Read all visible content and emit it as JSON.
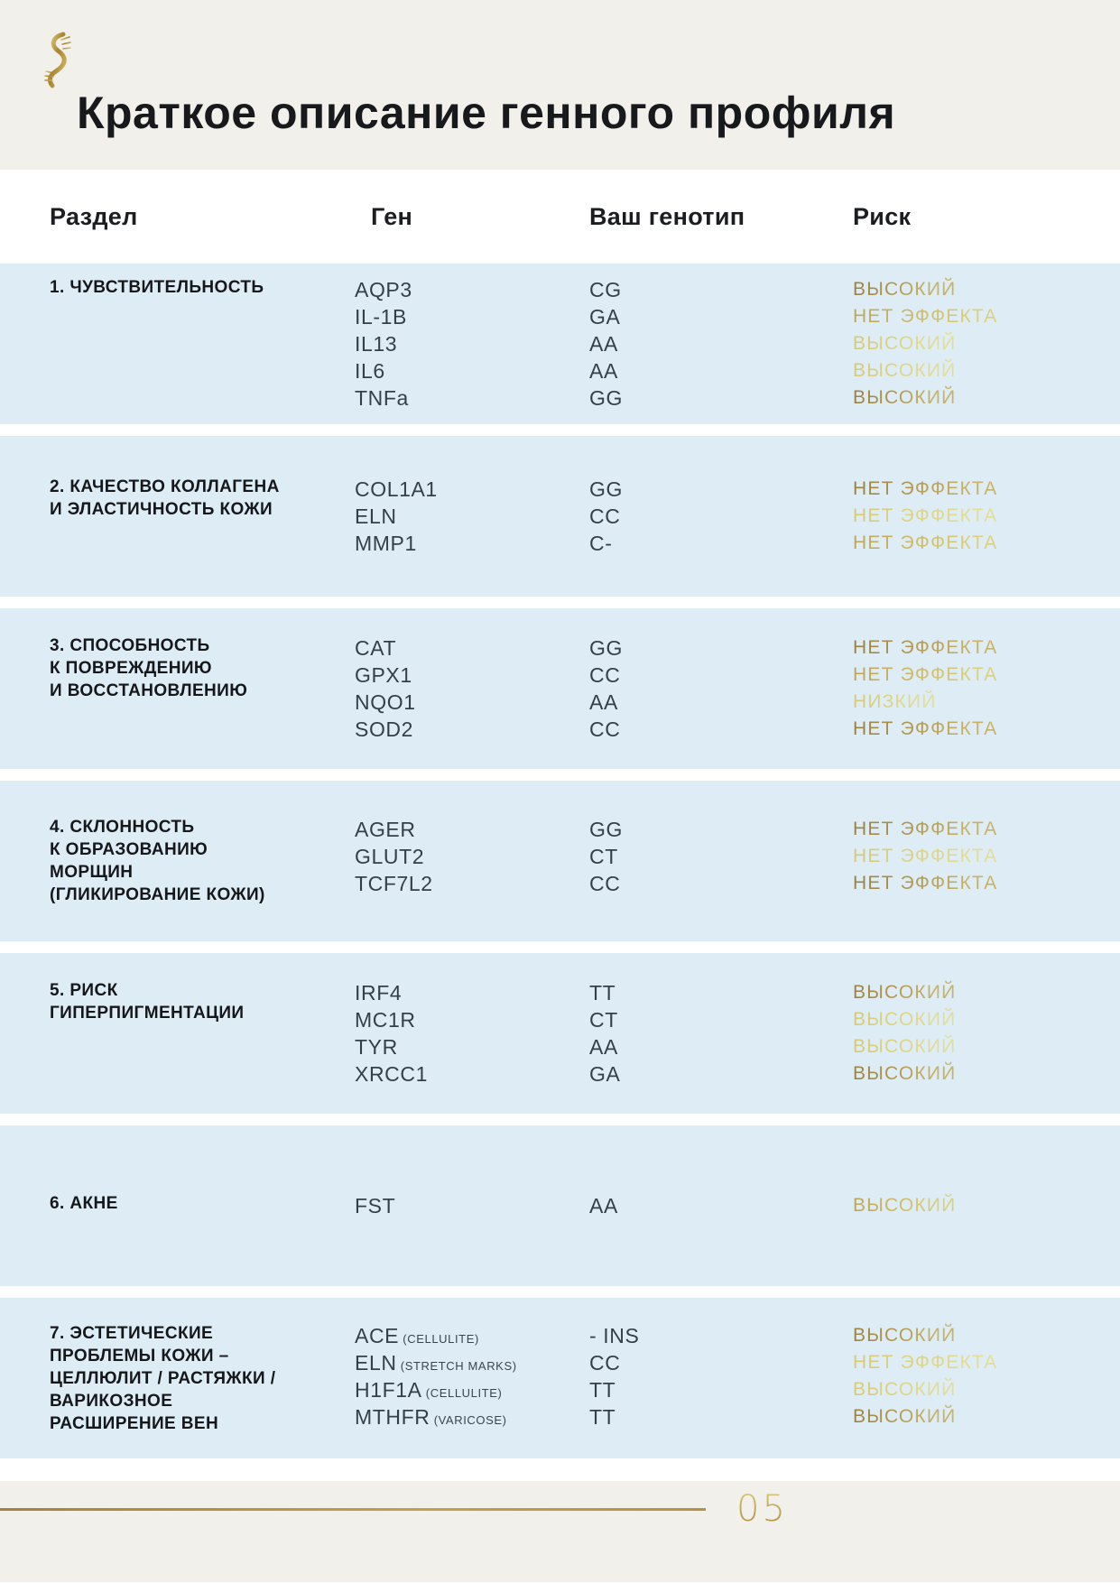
{
  "page": {
    "title": "Краткое описание генного профиля",
    "page_number": "05"
  },
  "logo": {
    "icon": "dna-helix-icon"
  },
  "table": {
    "headers": [
      "Раздел",
      "Ген",
      "Ваш генотип",
      "Риск"
    ],
    "sections": [
      {
        "title_lines": [
          "1. ЧУВСТВИТЕЛЬНОСТЬ"
        ],
        "rows": [
          {
            "gene": "AQP3",
            "note": "",
            "genotype": "CG",
            "risk": "ВЫСОКИЙ",
            "tone": "dark"
          },
          {
            "gene": "IL-1B",
            "note": "",
            "genotype": "GA",
            "risk": "НЕТ ЭФФЕКТА",
            "tone": "medium"
          },
          {
            "gene": "IL13",
            "note": "",
            "genotype": "AA",
            "risk": "ВЫСОКИЙ",
            "tone": "light"
          },
          {
            "gene": "IL6",
            "note": "",
            "genotype": "AA",
            "risk": "ВЫСОКИЙ",
            "tone": "light"
          },
          {
            "gene": "TNFa",
            "note": "",
            "genotype": "GG",
            "risk": "ВЫСОКИЙ",
            "tone": "dark"
          }
        ]
      },
      {
        "title_lines": [
          "2. КАЧЕСТВО КОЛЛАГЕНА",
          "И ЭЛАСТИЧНОСТЬ КОЖИ"
        ],
        "rows": [
          {
            "gene": "COL1A1",
            "note": "",
            "genotype": "GG",
            "risk": "НЕТ ЭФФЕКТА",
            "tone": "dark"
          },
          {
            "gene": "ELN",
            "note": "",
            "genotype": "CC",
            "risk": "НЕТ ЭФФЕКТА",
            "tone": "light"
          },
          {
            "gene": "MMP1",
            "note": "",
            "genotype": "C-",
            "risk": "НЕТ ЭФФЕКТА",
            "tone": "medium"
          }
        ]
      },
      {
        "title_lines": [
          "3. СПОСОБНОСТЬ",
          "К ПОВРЕЖДЕНИЮ",
          "И ВОССТАНОВЛЕНИЮ"
        ],
        "rows": [
          {
            "gene": "CAT",
            "note": "",
            "genotype": "GG",
            "risk": "НЕТ ЭФФЕКТА",
            "tone": "dark"
          },
          {
            "gene": "GPX1",
            "note": "",
            "genotype": "CC",
            "risk": "НЕТ ЭФФЕКТА",
            "tone": "medium"
          },
          {
            "gene": "NQO1",
            "note": "",
            "genotype": "AA",
            "risk": "НИЗКИЙ",
            "tone": "light"
          },
          {
            "gene": "SOD2",
            "note": "",
            "genotype": "CC",
            "risk": "НЕТ ЭФФЕКТА",
            "tone": "dark"
          }
        ]
      },
      {
        "title_lines": [
          "4. СКЛОННОСТЬ",
          "К ОБРАЗОВАНИЮ",
          "МОРЩИН",
          "(ГЛИКИРОВАНИЕ КОЖИ)"
        ],
        "rows": [
          {
            "gene": "AGER",
            "note": "",
            "genotype": "GG",
            "risk": "НЕТ ЭФФЕКТА",
            "tone": "dark"
          },
          {
            "gene": "GLUT2",
            "note": "",
            "genotype": "CT",
            "risk": "НЕТ ЭФФЕКТА",
            "tone": "light"
          },
          {
            "gene": "TCF7L2",
            "note": "",
            "genotype": "CC",
            "risk": "НЕТ ЭФФЕКТА",
            "tone": "dark"
          }
        ]
      },
      {
        "title_lines": [
          "5. РИСК",
          "ГИПЕРПИГМЕНТАЦИИ"
        ],
        "rows": [
          {
            "gene": "IRF4",
            "note": "",
            "genotype": "TT",
            "risk": "ВЫСОКИЙ",
            "tone": "dark"
          },
          {
            "gene": "MC1R",
            "note": "",
            "genotype": "CT",
            "risk": "ВЫСОКИЙ",
            "tone": "light"
          },
          {
            "gene": "TYR",
            "note": "",
            "genotype": "AA",
            "risk": "ВЫСОКИЙ",
            "tone": "light"
          },
          {
            "gene": "XRCC1",
            "note": "",
            "genotype": "GA",
            "risk": "ВЫСОКИЙ",
            "tone": "dark"
          }
        ]
      },
      {
        "title_lines": [
          "6. АКНЕ"
        ],
        "rows": [
          {
            "gene": "FST",
            "note": "",
            "genotype": "AA",
            "risk": "ВЫСОКИЙ",
            "tone": "medium"
          }
        ]
      },
      {
        "title_lines": [
          "7. ЭСТЕТИЧЕСКИЕ",
          "ПРОБЛЕМЫ КОЖИ –",
          "ЦЕЛЛЮЛИТ / РАСТЯЖКИ /",
          "ВАРИКОЗНОЕ",
          "РАСШИРЕНИЕ ВЕН"
        ],
        "rows": [
          {
            "gene": "ACE",
            "note": "(CELLULITE)",
            "genotype": "- INS",
            "risk": "ВЫСОКИЙ",
            "tone": "dark"
          },
          {
            "gene": "ELN",
            "note": "(STRETCH MARKS)",
            "genotype": "CC",
            "risk": "НЕТ ЭФФЕКТА",
            "tone": "light"
          },
          {
            "gene": "H1F1A",
            "note": "(CELLULITE)",
            "genotype": "TT",
            "risk": "ВЫСОКИЙ",
            "tone": "light"
          },
          {
            "gene": "MTHFR",
            "note": "(VARICOSE)",
            "genotype": "TT",
            "risk": "ВЫСОКИЙ",
            "tone": "dark"
          }
        ]
      }
    ]
  },
  "colors": {
    "band_background": "#deedf5",
    "page_background": "#ffffff",
    "header_background": "#f1f0ea",
    "gold_dark": "#9c7f3e",
    "gold_light": "#e4dd95",
    "text_dark": "#343f4a"
  }
}
